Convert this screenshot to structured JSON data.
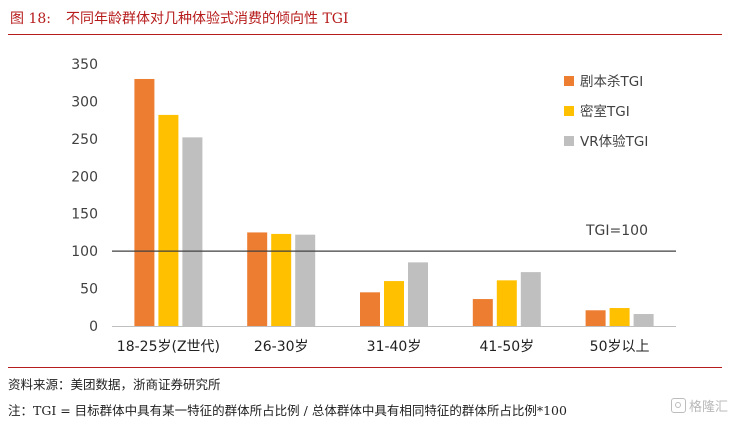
{
  "figure": {
    "number": "图 18:",
    "title": "不同年龄群体对几种体验式消费的倾向性 TGI"
  },
  "chart_data": {
    "type": "bar",
    "categories": [
      "18-25岁(Z世代)",
      "26-30岁",
      "31-40岁",
      "41-50岁",
      "50岁以上"
    ],
    "series": [
      {
        "name": "剧本杀TGI",
        "color": "#ed7d31",
        "values": [
          330,
          125,
          45,
          36,
          21
        ]
      },
      {
        "name": "密室TGI",
        "color": "#ffc000",
        "values": [
          282,
          123,
          60,
          61,
          24
        ]
      },
      {
        "name": "VR体验TGI",
        "color": "#bfbfbf",
        "values": [
          252,
          122,
          85,
          72,
          16
        ]
      }
    ],
    "ylim": [
      0,
      350
    ],
    "yticks": [
      0,
      50,
      100,
      150,
      200,
      250,
      300,
      350
    ],
    "reference_line": {
      "value": 100,
      "label": "TGI=100"
    },
    "legend_position": "top-right",
    "grid": false
  },
  "notes": {
    "source": "资料来源：美团数据，浙商证券研究所",
    "definition": "注：TGI = 目标群体中具有某一特征的群体所占比例 / 总体群体中具有相同特征的群体所占比例*100"
  },
  "watermark": {
    "text": "格隆汇",
    "icon": "gelonghui-logo-icon"
  }
}
